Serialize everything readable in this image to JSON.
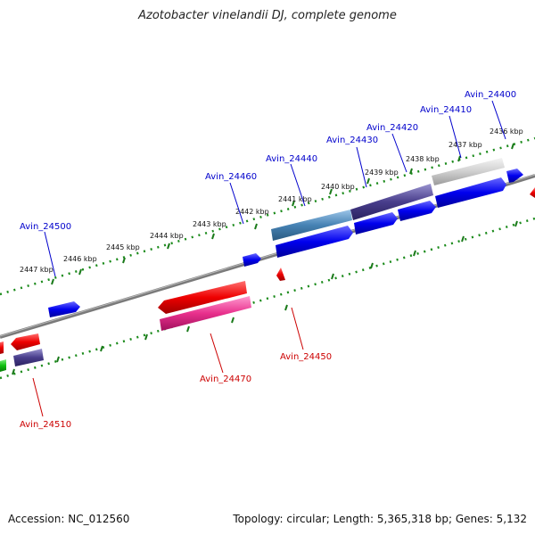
{
  "title": "Azotobacter vinelandii DJ, complete genome",
  "footer": {
    "accession": "Accession: NC_012560",
    "summary": "Topology: circular; Length: 5,365,318 bp; Genes: 5,132"
  },
  "colors": {
    "forward_label": "#0000cc",
    "reverse_label": "#cc0000",
    "backbone": "#808080",
    "tick_marks": "#1a7a1a"
  },
  "scale_ticks": [
    "2436 kbp",
    "2437 kbp",
    "2438 kbp",
    "2439 kbp",
    "2440 kbp",
    "2441 kbp",
    "2442 kbp",
    "2443 kbp",
    "2444 kbp",
    "2445 kbp",
    "2446 kbp",
    "2447 kbp"
  ],
  "genes_forward": [
    "Avin_24400",
    "Avin_24410",
    "Avin_24420",
    "Avin_24430",
    "Avin_24440",
    "Avin_24460",
    "Avin_24500"
  ],
  "genes_reverse": [
    "Avin_24450",
    "Avin_24470",
    "Avin_24510"
  ]
}
